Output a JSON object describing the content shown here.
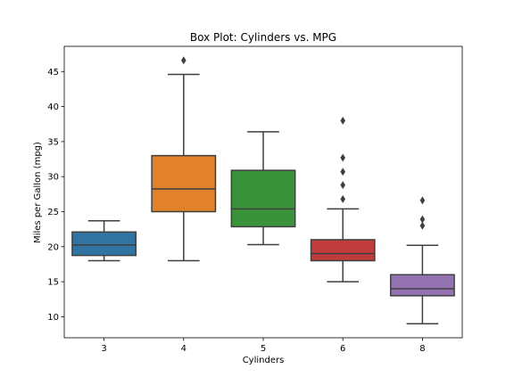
{
  "chart_data": {
    "type": "box",
    "title": "Box Plot: Cylinders vs. MPG",
    "xlabel": "Cylinders",
    "ylabel": "Miles per Gallon (mpg)",
    "ylim": [
      7.0,
      48.6
    ],
    "yticks": [
      10,
      15,
      20,
      25,
      30,
      35,
      40,
      45
    ],
    "categories": [
      "3",
      "4",
      "5",
      "6",
      "8"
    ],
    "boxes": [
      {
        "category": "3",
        "whisker_low": 18.0,
        "q1": 18.75,
        "median": 20.25,
        "q3": 22.1,
        "whisker_high": 23.7,
        "outliers": [],
        "color": "#3274a1"
      },
      {
        "category": "4",
        "whisker_low": 18.0,
        "q1": 25.0,
        "median": 28.25,
        "q3": 33.0,
        "whisker_high": 44.6,
        "outliers": [
          46.6
        ],
        "color": "#e1812c"
      },
      {
        "category": "5",
        "whisker_low": 20.3,
        "q1": 22.85,
        "median": 25.4,
        "q3": 30.9,
        "whisker_high": 36.4,
        "outliers": [],
        "color": "#3a923a"
      },
      {
        "category": "6",
        "whisker_low": 15.0,
        "q1": 18.0,
        "median": 19.0,
        "q3": 21.0,
        "whisker_high": 25.4,
        "outliers": [
          26.8,
          28.8,
          30.7,
          32.7,
          38.0
        ],
        "color": "#c03d3e"
      },
      {
        "category": "8",
        "whisker_low": 9.0,
        "q1": 13.0,
        "median": 14.0,
        "q3": 16.0,
        "whisker_high": 20.2,
        "outliers": [
          23.0,
          23.9,
          26.6
        ],
        "color": "#9372b2"
      }
    ],
    "grid": false,
    "legend": "none"
  }
}
